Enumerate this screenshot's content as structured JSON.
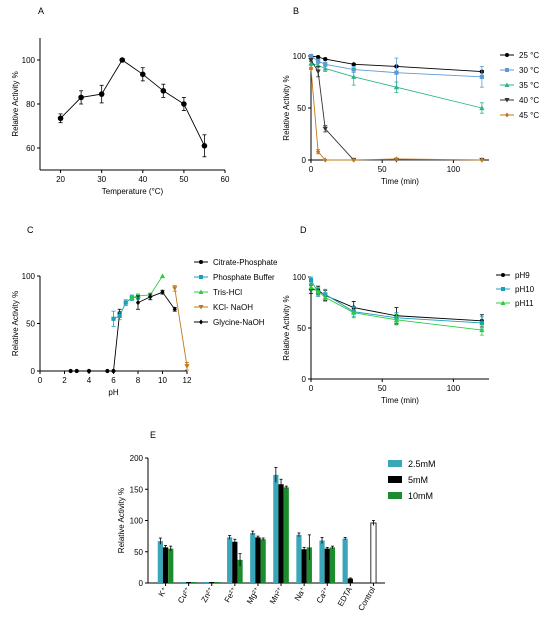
{
  "chart_data": [
    {
      "id": "A",
      "type": "line",
      "panel_label": "A",
      "xlabel": "Temperature (°C)",
      "ylabel": "Relative Activity %",
      "xlim": [
        15,
        60
      ],
      "ylim": [
        50,
        110
      ],
      "xticks": [
        20,
        30,
        40,
        50,
        60
      ],
      "yticks": [
        60,
        80,
        100
      ],
      "series": [
        {
          "name": "",
          "color": "#000000",
          "x": [
            20,
            25,
            30,
            35,
            40,
            45,
            50,
            55
          ],
          "y": [
            73.5,
            83,
            84.5,
            100,
            93.5,
            86,
            80,
            61
          ],
          "err": [
            2,
            3,
            4,
            0.5,
            3,
            3,
            3,
            5
          ]
        }
      ]
    },
    {
      "id": "B",
      "type": "line",
      "panel_label": "B",
      "xlabel": "Time (min)",
      "ylabel": "Relative Activity %",
      "xlim": [
        0,
        125
      ],
      "ylim": [
        0,
        100
      ],
      "xticks": [
        0,
        50,
        100
      ],
      "yticks": [
        0,
        50,
        100
      ],
      "legend_position": "right",
      "series": [
        {
          "name": "25 °C",
          "color": "#000000",
          "marker": "circle",
          "x": [
            0,
            5,
            10,
            30,
            60,
            120
          ],
          "y": [
            100,
            99,
            97,
            92,
            90,
            85
          ],
          "err": [
            0,
            1,
            1,
            1,
            1,
            1
          ]
        },
        {
          "name": "30 °C",
          "color": "#5b9bd5",
          "marker": "square",
          "x": [
            0,
            5,
            10,
            30,
            60,
            120
          ],
          "y": [
            100,
            95,
            92,
            87,
            84,
            80
          ],
          "err": [
            0,
            2,
            2,
            3,
            14,
            10
          ]
        },
        {
          "name": "35 °C",
          "color": "#2bb58a",
          "marker": "triangle",
          "x": [
            0,
            5,
            10,
            30,
            60,
            120
          ],
          "y": [
            93,
            91,
            88,
            80,
            70,
            50
          ],
          "err": [
            2,
            2,
            3,
            8,
            5,
            5
          ]
        },
        {
          "name": "40 °C",
          "color": "#333333",
          "marker": "triangle-down",
          "x": [
            0,
            5,
            10,
            30,
            60,
            120
          ],
          "y": [
            96,
            85,
            30,
            0,
            0,
            0
          ],
          "err": [
            1,
            5,
            3,
            0,
            0,
            0
          ]
        },
        {
          "name": "45 °C",
          "color": "#c07a1a",
          "marker": "diamond",
          "x": [
            0,
            5,
            10,
            30,
            60,
            120
          ],
          "y": [
            88,
            8,
            0,
            0,
            1,
            0
          ],
          "err": [
            1,
            2,
            0,
            0,
            0,
            0
          ]
        }
      ]
    },
    {
      "id": "C",
      "type": "line",
      "panel_label": "C",
      "xlabel": "pH",
      "ylabel": "Relative Activity %",
      "xlim": [
        0,
        12
      ],
      "ylim": [
        0,
        100
      ],
      "xticks": [
        0,
        2,
        4,
        6,
        8,
        10,
        12
      ],
      "yticks": [
        0,
        50,
        100
      ],
      "legend_position": "right",
      "series": [
        {
          "name": "Citrate-Phosphate",
          "color": "#000000",
          "marker": "circle",
          "x": [
            2.5,
            3,
            4,
            5.5,
            6,
            6.5
          ],
          "y": [
            0,
            0,
            0,
            0,
            0,
            61
          ],
          "err": [
            0,
            0,
            0,
            0,
            0,
            4
          ]
        },
        {
          "name": "Phosphate Buffer",
          "color": "#17a0b8",
          "marker": "square",
          "x": [
            6,
            6.5,
            7,
            7.5,
            8
          ],
          "y": [
            55,
            58,
            72,
            77,
            78
          ],
          "err": [
            8,
            4,
            3,
            3,
            3
          ]
        },
        {
          "name": "Tris-HCl",
          "color": "#2ecc40",
          "marker": "triangle",
          "x": [
            7.5,
            8,
            9,
            10
          ],
          "y": [
            77,
            79,
            80,
            100
          ],
          "err": [
            2,
            2,
            2,
            0
          ]
        },
        {
          "name": "KCl- NaOH",
          "color": "#c07a1a",
          "marker": "triangle-down",
          "x": [
            11,
            12
          ],
          "y": [
            87,
            5
          ],
          "err": [
            3,
            4
          ]
        },
        {
          "name": "Glycine-NaOH",
          "color": "#000000",
          "marker": "diamond",
          "x": [
            8,
            9,
            10,
            11
          ],
          "y": [
            72,
            78,
            83,
            65
          ],
          "err": [
            7,
            3,
            2,
            2
          ]
        }
      ]
    },
    {
      "id": "D",
      "type": "line",
      "panel_label": "D",
      "xlabel": "Time (min)",
      "ylabel": "Relative Activity %",
      "xlim": [
        0,
        125
      ],
      "ylim": [
        0,
        100
      ],
      "xticks": [
        0,
        50,
        100
      ],
      "yticks": [
        0,
        50,
        100
      ],
      "legend_position": "right",
      "series": [
        {
          "name": "pH9",
          "color": "#000000",
          "marker": "circle",
          "x": [
            0,
            5,
            10,
            30,
            60,
            120
          ],
          "y": [
            88,
            87,
            82,
            70,
            62,
            57
          ],
          "err": [
            4,
            4,
            5,
            6,
            8,
            6
          ]
        },
        {
          "name": "pH10",
          "color": "#17a0b8",
          "marker": "square",
          "x": [
            0,
            5,
            10,
            30,
            60,
            120
          ],
          "y": [
            97,
            85,
            83,
            66,
            60,
            55
          ],
          "err": [
            3,
            4,
            5,
            5,
            5,
            6
          ]
        },
        {
          "name": "pH11",
          "color": "#2ecc40",
          "marker": "triangle",
          "x": [
            0,
            5,
            10,
            30,
            60,
            120
          ],
          "y": [
            90,
            86,
            80,
            65,
            58,
            48
          ],
          "err": [
            3,
            4,
            4,
            5,
            5,
            5
          ]
        }
      ]
    },
    {
      "id": "E",
      "type": "bar",
      "panel_label": "E",
      "ylabel": "Relative Activity %",
      "ylim": [
        0,
        200
      ],
      "yticks": [
        0,
        50,
        100,
        150,
        200
      ],
      "categories": [
        "K⁺",
        "Cu²⁺",
        "Zn²⁺",
        "Fe²⁺",
        "Mg²⁺",
        "Mn²⁺",
        "Na⁺",
        "Ca²⁺",
        "EDTA",
        "Control"
      ],
      "legend_position": "right",
      "series": [
        {
          "name": "2.5mM",
          "color": "#3aa6b9",
          "values": [
            67,
            0,
            0,
            73,
            80,
            173,
            77,
            68,
            71,
            96
          ],
          "err": [
            5,
            0,
            0,
            3,
            3,
            12,
            3,
            5,
            2,
            4
          ]
        },
        {
          "name": "5mM",
          "color": "#000000",
          "values": [
            57,
            0,
            0,
            66,
            73,
            158,
            54,
            55,
            7,
            null
          ],
          "err": [
            3,
            0,
            0,
            4,
            2,
            8,
            3,
            2,
            1,
            null
          ]
        },
        {
          "name": "10mM",
          "color": "#1c8c2e",
          "values": [
            55,
            0,
            0,
            37,
            70,
            153,
            57,
            57,
            null,
            null
          ],
          "err": [
            4,
            0,
            0,
            10,
            2,
            2,
            20,
            2,
            null,
            null
          ]
        }
      ],
      "control_fill": "#ffffff"
    }
  ]
}
